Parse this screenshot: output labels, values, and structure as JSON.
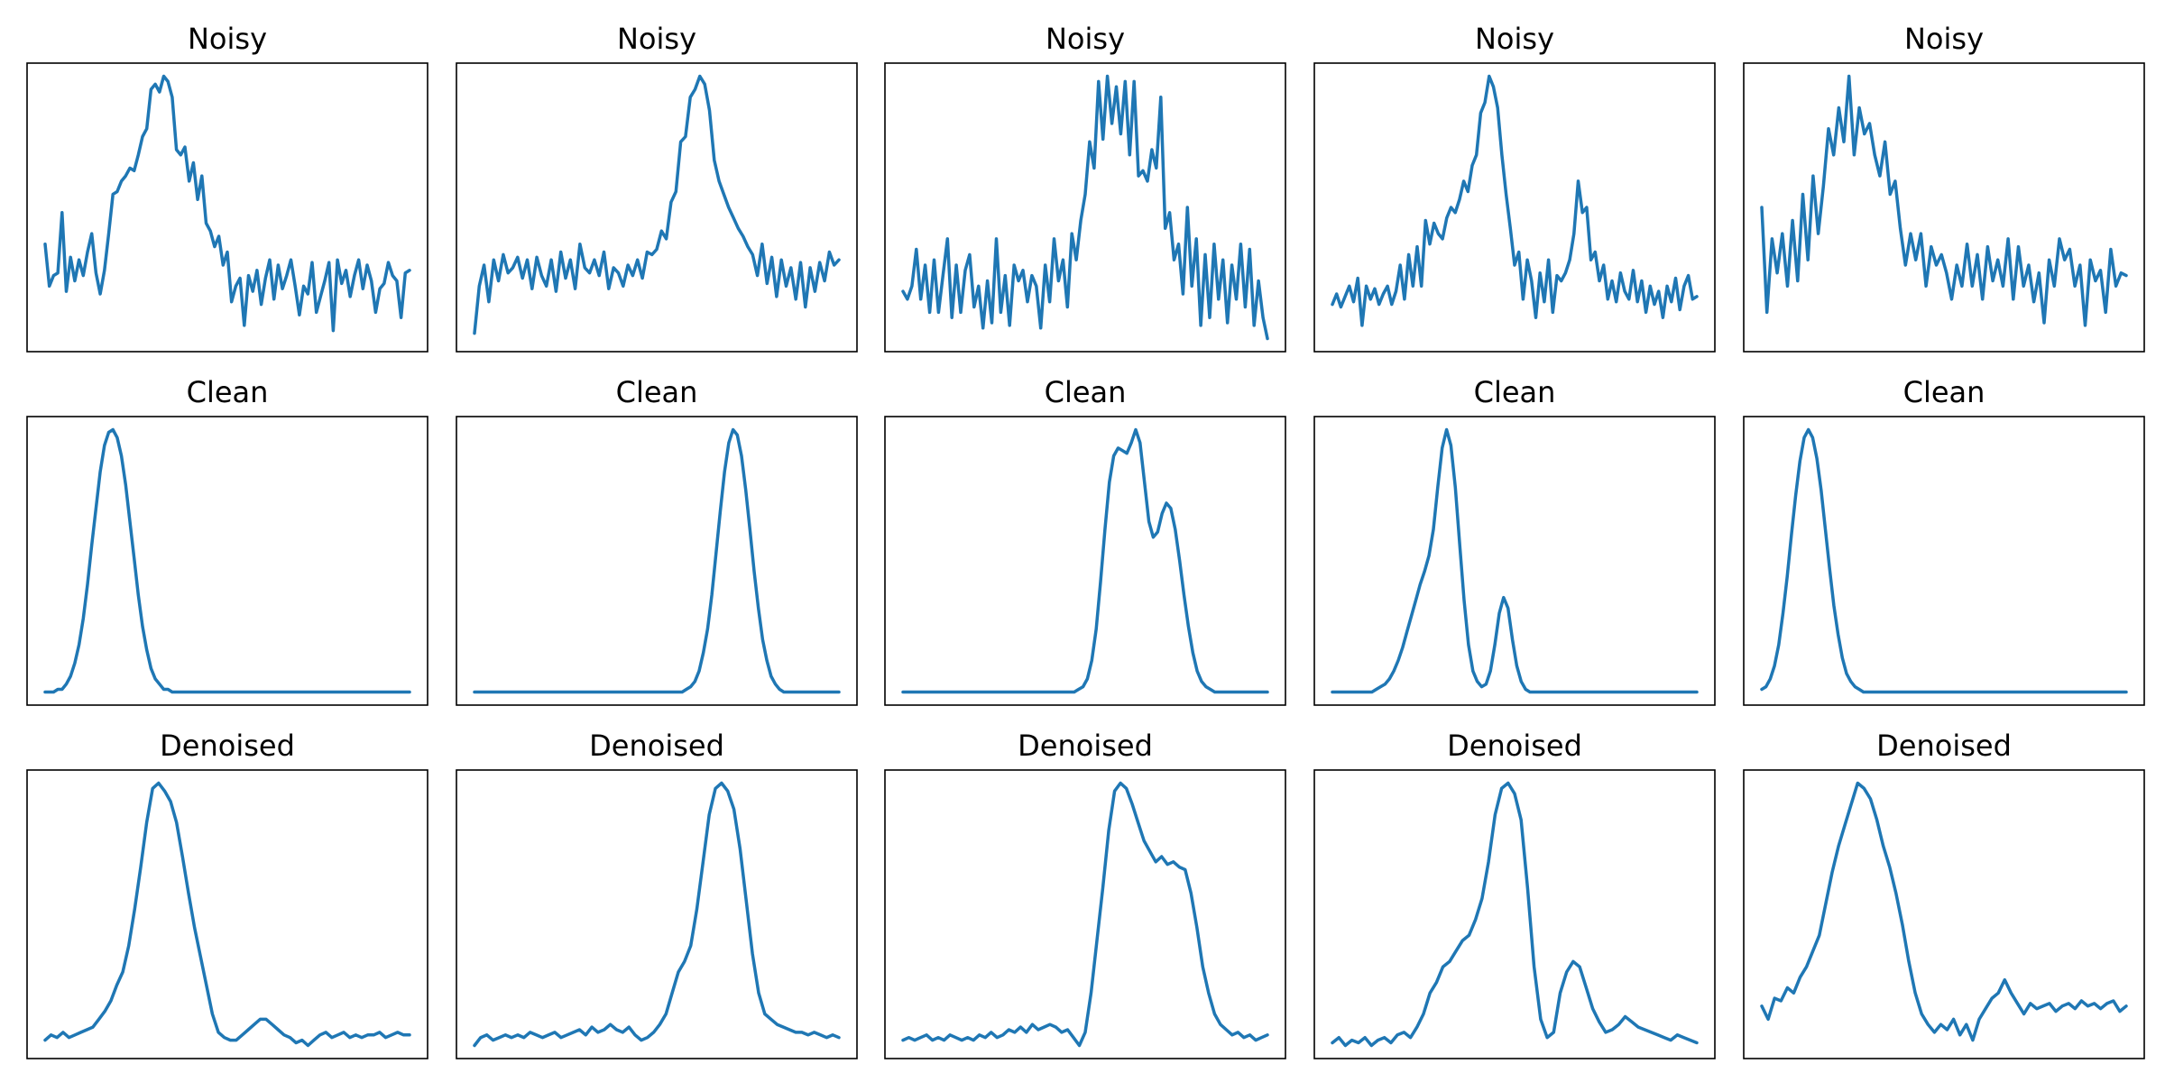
{
  "colors": {
    "line": "#1f77b4",
    "frame": "#000000",
    "background": "#ffffff"
  },
  "chart_data": [
    {
      "type": "line",
      "title": "Noisy",
      "xlabel": "",
      "ylabel": "",
      "grid": false,
      "ticks": false,
      "ylim": [
        -0.05,
        1.05
      ],
      "values": [
        0.36,
        0.2,
        0.24,
        0.25,
        0.48,
        0.18,
        0.31,
        0.22,
        0.3,
        0.24,
        0.33,
        0.4,
        0.25,
        0.17,
        0.26,
        0.4,
        0.55,
        0.56,
        0.6,
        0.62,
        0.65,
        0.64,
        0.7,
        0.77,
        0.8,
        0.95,
        0.97,
        0.94,
        1.0,
        0.98,
        0.92,
        0.72,
        0.7,
        0.73,
        0.6,
        0.67,
        0.53,
        0.62,
        0.44,
        0.41,
        0.35,
        0.39,
        0.28,
        0.33,
        0.14,
        0.2,
        0.23,
        0.05,
        0.24,
        0.18,
        0.26,
        0.13,
        0.23,
        0.3,
        0.15,
        0.28,
        0.19,
        0.24,
        0.3,
        0.2,
        0.09,
        0.2,
        0.17,
        0.29,
        0.1,
        0.16,
        0.22,
        0.29,
        0.03,
        0.3,
        0.21,
        0.26,
        0.16,
        0.24,
        0.3,
        0.19,
        0.28,
        0.22,
        0.1,
        0.19,
        0.21,
        0.29,
        0.24,
        0.22,
        0.08,
        0.25,
        0.26
      ]
    },
    {
      "type": "line",
      "title": "Clean",
      "xlabel": "",
      "ylabel": "",
      "grid": false,
      "ticks": false,
      "ylim": [
        -0.05,
        1.05
      ],
      "values": [
        0,
        0,
        0,
        0.01,
        0.01,
        0.03,
        0.06,
        0.11,
        0.18,
        0.28,
        0.41,
        0.56,
        0.7,
        0.84,
        0.94,
        0.99,
        1.0,
        0.97,
        0.9,
        0.79,
        0.65,
        0.51,
        0.37,
        0.25,
        0.16,
        0.09,
        0.05,
        0.03,
        0.01,
        0.01,
        0,
        0,
        0,
        0,
        0,
        0,
        0,
        0,
        0,
        0,
        0,
        0,
        0,
        0,
        0,
        0,
        0,
        0,
        0,
        0,
        0,
        0,
        0,
        0,
        0,
        0,
        0,
        0,
        0,
        0,
        0,
        0,
        0,
        0,
        0,
        0,
        0,
        0,
        0,
        0,
        0,
        0,
        0,
        0,
        0,
        0,
        0,
        0,
        0,
        0,
        0,
        0,
        0,
        0,
        0,
        0,
        0
      ]
    },
    {
      "type": "line",
      "title": "Denoised",
      "xlabel": "",
      "ylabel": "",
      "grid": false,
      "ticks": false,
      "ylim": [
        -0.05,
        1.05
      ],
      "values": [
        0.02,
        0.04,
        0.03,
        0.05,
        0.03,
        0.04,
        0.05,
        0.06,
        0.07,
        0.1,
        0.13,
        0.17,
        0.23,
        0.28,
        0.38,
        0.52,
        0.68,
        0.85,
        0.98,
        1.0,
        0.97,
        0.93,
        0.85,
        0.72,
        0.58,
        0.45,
        0.34,
        0.23,
        0.12,
        0.05,
        0.03,
        0.02,
        0.02,
        0.04,
        0.06,
        0.08,
        0.1,
        0.1,
        0.08,
        0.06,
        0.04,
        0.03,
        0.01,
        0.02,
        0.0,
        0.02,
        0.04,
        0.05,
        0.03,
        0.04,
        0.05,
        0.03,
        0.04,
        0.03,
        0.04,
        0.04,
        0.05,
        0.03,
        0.04,
        0.05,
        0.04,
        0.04
      ]
    },
    {
      "type": "line",
      "title": "Noisy",
      "xlabel": "",
      "ylabel": "",
      "grid": false,
      "ticks": false,
      "ylim": [
        -0.05,
        1.05
      ],
      "values": [
        0.02,
        0.2,
        0.28,
        0.14,
        0.3,
        0.22,
        0.32,
        0.25,
        0.27,
        0.31,
        0.23,
        0.3,
        0.19,
        0.31,
        0.24,
        0.2,
        0.3,
        0.18,
        0.33,
        0.23,
        0.3,
        0.19,
        0.36,
        0.27,
        0.25,
        0.3,
        0.24,
        0.33,
        0.19,
        0.27,
        0.25,
        0.2,
        0.28,
        0.24,
        0.3,
        0.23,
        0.33,
        0.32,
        0.34,
        0.41,
        0.38,
        0.52,
        0.56,
        0.75,
        0.77,
        0.92,
        0.95,
        1.0,
        0.97,
        0.87,
        0.68,
        0.6,
        0.55,
        0.5,
        0.46,
        0.42,
        0.39,
        0.35,
        0.32,
        0.24,
        0.36,
        0.21,
        0.31,
        0.16,
        0.3,
        0.2,
        0.27,
        0.15,
        0.29,
        0.12,
        0.27,
        0.18,
        0.29,
        0.22,
        0.33,
        0.28,
        0.3
      ]
    },
    {
      "type": "line",
      "title": "Clean",
      "xlabel": "",
      "ylabel": "",
      "grid": false,
      "ticks": false,
      "ylim": [
        -0.05,
        1.05
      ],
      "values": [
        0,
        0,
        0,
        0,
        0,
        0,
        0,
        0,
        0,
        0,
        0,
        0,
        0,
        0,
        0,
        0,
        0,
        0,
        0,
        0,
        0,
        0,
        0,
        0,
        0,
        0,
        0,
        0,
        0,
        0,
        0,
        0,
        0,
        0,
        0,
        0,
        0,
        0,
        0,
        0,
        0,
        0,
        0,
        0,
        0,
        0,
        0,
        0,
        0,
        0,
        0.01,
        0.02,
        0.04,
        0.08,
        0.15,
        0.24,
        0.37,
        0.53,
        0.69,
        0.84,
        0.95,
        1.0,
        0.98,
        0.9,
        0.77,
        0.62,
        0.46,
        0.32,
        0.2,
        0.12,
        0.06,
        0.03,
        0.01,
        0,
        0,
        0,
        0,
        0,
        0,
        0,
        0,
        0,
        0,
        0,
        0,
        0,
        0
      ]
    },
    {
      "type": "line",
      "title": "Denoised",
      "xlabel": "",
      "ylabel": "",
      "grid": false,
      "ticks": false,
      "ylim": [
        -0.05,
        1.05
      ],
      "values": [
        0.0,
        0.03,
        0.04,
        0.02,
        0.03,
        0.04,
        0.03,
        0.04,
        0.03,
        0.05,
        0.04,
        0.03,
        0.04,
        0.05,
        0.03,
        0.04,
        0.05,
        0.06,
        0.04,
        0.07,
        0.05,
        0.06,
        0.08,
        0.06,
        0.05,
        0.07,
        0.04,
        0.02,
        0.03,
        0.05,
        0.08,
        0.12,
        0.2,
        0.28,
        0.32,
        0.38,
        0.52,
        0.7,
        0.88,
        0.98,
        1.0,
        0.97,
        0.9,
        0.75,
        0.55,
        0.35,
        0.2,
        0.12,
        0.1,
        0.08,
        0.07,
        0.06,
        0.05,
        0.05,
        0.04,
        0.05,
        0.04,
        0.03,
        0.04,
        0.03
      ]
    },
    {
      "type": "line",
      "title": "Noisy",
      "xlabel": "",
      "ylabel": "",
      "grid": false,
      "ticks": false,
      "ylim": [
        -0.05,
        1.05
      ],
      "values": [
        0.18,
        0.15,
        0.2,
        0.34,
        0.15,
        0.28,
        0.1,
        0.3,
        0.1,
        0.24,
        0.38,
        0.08,
        0.28,
        0.1,
        0.26,
        0.32,
        0.12,
        0.2,
        0.04,
        0.22,
        0.06,
        0.38,
        0.1,
        0.24,
        0.05,
        0.28,
        0.22,
        0.26,
        0.14,
        0.24,
        0.2,
        0.04,
        0.28,
        0.14,
        0.38,
        0.22,
        0.3,
        0.12,
        0.4,
        0.3,
        0.45,
        0.55,
        0.75,
        0.65,
        0.98,
        0.76,
        1.0,
        0.82,
        0.96,
        0.78,
        0.98,
        0.7,
        0.98,
        0.62,
        0.64,
        0.6,
        0.72,
        0.65,
        0.92,
        0.42,
        0.48,
        0.3,
        0.36,
        0.17,
        0.5,
        0.2,
        0.38,
        0.05,
        0.32,
        0.08,
        0.36,
        0.15,
        0.3,
        0.06,
        0.28,
        0.15,
        0.36,
        0.12,
        0.34,
        0.05,
        0.22,
        0.08,
        0.0
      ]
    },
    {
      "type": "line",
      "title": "Clean",
      "xlabel": "",
      "ylabel": "",
      "grid": false,
      "ticks": false,
      "ylim": [
        -0.05,
        1.05
      ],
      "values": [
        0,
        0,
        0,
        0,
        0,
        0,
        0,
        0,
        0,
        0,
        0,
        0,
        0,
        0,
        0,
        0,
        0,
        0,
        0,
        0,
        0,
        0,
        0,
        0,
        0,
        0,
        0,
        0,
        0,
        0,
        0,
        0,
        0,
        0,
        0,
        0,
        0,
        0,
        0,
        0,
        0.01,
        0.02,
        0.05,
        0.12,
        0.24,
        0.42,
        0.62,
        0.8,
        0.9,
        0.93,
        0.92,
        0.91,
        0.95,
        1.0,
        0.95,
        0.8,
        0.65,
        0.59,
        0.61,
        0.68,
        0.72,
        0.7,
        0.62,
        0.5,
        0.37,
        0.25,
        0.15,
        0.08,
        0.04,
        0.02,
        0.01,
        0,
        0,
        0,
        0,
        0,
        0,
        0,
        0,
        0,
        0,
        0,
        0,
        0
      ]
    },
    {
      "type": "line",
      "title": "Denoised",
      "xlabel": "",
      "ylabel": "",
      "grid": false,
      "ticks": false,
      "ylim": [
        -0.05,
        1.05
      ],
      "values": [
        0.02,
        0.03,
        0.02,
        0.03,
        0.04,
        0.02,
        0.03,
        0.02,
        0.04,
        0.03,
        0.02,
        0.03,
        0.02,
        0.04,
        0.03,
        0.05,
        0.03,
        0.04,
        0.06,
        0.05,
        0.07,
        0.05,
        0.08,
        0.06,
        0.07,
        0.08,
        0.07,
        0.05,
        0.06,
        0.03,
        0.0,
        0.05,
        0.2,
        0.4,
        0.6,
        0.82,
        0.97,
        1.0,
        0.98,
        0.92,
        0.85,
        0.78,
        0.74,
        0.7,
        0.72,
        0.69,
        0.7,
        0.68,
        0.67,
        0.58,
        0.45,
        0.3,
        0.2,
        0.12,
        0.08,
        0.06,
        0.04,
        0.05,
        0.03,
        0.04,
        0.02,
        0.03,
        0.04
      ]
    },
    {
      "type": "line",
      "title": "Noisy",
      "xlabel": "",
      "ylabel": "",
      "grid": false,
      "ticks": false,
      "ylim": [
        -0.05,
        1.05
      ],
      "values": [
        0.13,
        0.17,
        0.12,
        0.16,
        0.2,
        0.14,
        0.23,
        0.05,
        0.2,
        0.15,
        0.19,
        0.13,
        0.17,
        0.2,
        0.13,
        0.18,
        0.28,
        0.15,
        0.32,
        0.2,
        0.35,
        0.2,
        0.45,
        0.36,
        0.44,
        0.4,
        0.38,
        0.46,
        0.5,
        0.48,
        0.53,
        0.6,
        0.56,
        0.66,
        0.7,
        0.86,
        0.9,
        1.0,
        0.96,
        0.88,
        0.7,
        0.55,
        0.42,
        0.28,
        0.33,
        0.15,
        0.3,
        0.22,
        0.08,
        0.25,
        0.14,
        0.3,
        0.1,
        0.24,
        0.22,
        0.25,
        0.3,
        0.4,
        0.6,
        0.48,
        0.5,
        0.3,
        0.33,
        0.22,
        0.28,
        0.15,
        0.22,
        0.14,
        0.25,
        0.18,
        0.15,
        0.26,
        0.14,
        0.22,
        0.1,
        0.2,
        0.13,
        0.18,
        0.08,
        0.2,
        0.14,
        0.23,
        0.11,
        0.2,
        0.24,
        0.15,
        0.16
      ]
    },
    {
      "type": "line",
      "title": "Clean",
      "xlabel": "",
      "ylabel": "",
      "grid": false,
      "ticks": false,
      "ylim": [
        -0.05,
        1.05
      ],
      "values": [
        0,
        0,
        0,
        0,
        0,
        0,
        0,
        0,
        0,
        0,
        0.01,
        0.02,
        0.03,
        0.05,
        0.08,
        0.12,
        0.17,
        0.23,
        0.29,
        0.35,
        0.41,
        0.46,
        0.52,
        0.62,
        0.78,
        0.93,
        1.0,
        0.94,
        0.78,
        0.56,
        0.35,
        0.18,
        0.08,
        0.04,
        0.02,
        0.03,
        0.08,
        0.18,
        0.3,
        0.36,
        0.32,
        0.2,
        0.1,
        0.04,
        0.01,
        0,
        0,
        0,
        0,
        0,
        0,
        0,
        0,
        0,
        0,
        0,
        0,
        0,
        0,
        0,
        0,
        0,
        0,
        0,
        0,
        0,
        0,
        0,
        0,
        0,
        0,
        0,
        0,
        0,
        0,
        0,
        0,
        0,
        0,
        0,
        0,
        0,
        0,
        0
      ]
    },
    {
      "type": "line",
      "title": "Denoised",
      "xlabel": "",
      "ylabel": "",
      "grid": false,
      "ticks": false,
      "ylim": [
        -0.05,
        1.05
      ],
      "values": [
        0.01,
        0.03,
        0.0,
        0.02,
        0.01,
        0.03,
        0.0,
        0.02,
        0.03,
        0.01,
        0.04,
        0.05,
        0.03,
        0.07,
        0.12,
        0.2,
        0.24,
        0.3,
        0.32,
        0.36,
        0.4,
        0.42,
        0.48,
        0.56,
        0.7,
        0.88,
        0.98,
        1.0,
        0.96,
        0.86,
        0.6,
        0.3,
        0.1,
        0.03,
        0.05,
        0.2,
        0.28,
        0.32,
        0.3,
        0.22,
        0.14,
        0.09,
        0.05,
        0.06,
        0.08,
        0.11,
        0.09,
        0.07,
        0.06,
        0.05,
        0.04,
        0.03,
        0.02,
        0.04,
        0.03,
        0.02,
        0.01
      ]
    },
    {
      "type": "line",
      "title": "Noisy",
      "xlabel": "",
      "ylabel": "",
      "grid": false,
      "ticks": false,
      "ylim": [
        -0.05,
        1.05
      ],
      "values": [
        0.5,
        0.1,
        0.38,
        0.25,
        0.4,
        0.2,
        0.45,
        0.22,
        0.55,
        0.3,
        0.62,
        0.4,
        0.58,
        0.8,
        0.7,
        0.88,
        0.75,
        1.0,
        0.7,
        0.88,
        0.78,
        0.82,
        0.7,
        0.62,
        0.75,
        0.55,
        0.6,
        0.42,
        0.28,
        0.4,
        0.3,
        0.4,
        0.2,
        0.35,
        0.28,
        0.32,
        0.25,
        0.15,
        0.28,
        0.2,
        0.36,
        0.2,
        0.32,
        0.15,
        0.35,
        0.22,
        0.3,
        0.2,
        0.38,
        0.15,
        0.35,
        0.2,
        0.28,
        0.14,
        0.25,
        0.06,
        0.3,
        0.2,
        0.38,
        0.3,
        0.34,
        0.2,
        0.28,
        0.05,
        0.3,
        0.22,
        0.26,
        0.1,
        0.34,
        0.2,
        0.25,
        0.24
      ]
    },
    {
      "type": "line",
      "title": "Clean",
      "xlabel": "",
      "ylabel": "",
      "grid": false,
      "ticks": false,
      "ylim": [
        -0.05,
        1.05
      ],
      "values": [
        0.01,
        0.02,
        0.05,
        0.1,
        0.18,
        0.3,
        0.44,
        0.6,
        0.75,
        0.88,
        0.97,
        1.0,
        0.97,
        0.89,
        0.77,
        0.62,
        0.47,
        0.33,
        0.22,
        0.13,
        0.07,
        0.04,
        0.02,
        0.01,
        0,
        0,
        0,
        0,
        0,
        0,
        0,
        0,
        0,
        0,
        0,
        0,
        0,
        0,
        0,
        0,
        0,
        0,
        0,
        0,
        0,
        0,
        0,
        0,
        0,
        0,
        0,
        0,
        0,
        0,
        0,
        0,
        0,
        0,
        0,
        0,
        0,
        0,
        0,
        0,
        0,
        0,
        0,
        0,
        0,
        0,
        0,
        0,
        0,
        0,
        0,
        0,
        0,
        0,
        0,
        0,
        0,
        0,
        0,
        0,
        0,
        0,
        0
      ]
    },
    {
      "type": "line",
      "title": "Denoised",
      "xlabel": "",
      "ylabel": "",
      "grid": false,
      "ticks": false,
      "ylim": [
        -0.05,
        1.05
      ],
      "values": [
        0.15,
        0.1,
        0.18,
        0.17,
        0.22,
        0.2,
        0.26,
        0.3,
        0.36,
        0.42,
        0.54,
        0.66,
        0.76,
        0.84,
        0.92,
        1.0,
        0.98,
        0.94,
        0.86,
        0.76,
        0.68,
        0.58,
        0.46,
        0.32,
        0.2,
        0.12,
        0.08,
        0.05,
        0.08,
        0.06,
        0.1,
        0.04,
        0.08,
        0.02,
        0.1,
        0.14,
        0.18,
        0.2,
        0.25,
        0.2,
        0.16,
        0.12,
        0.16,
        0.14,
        0.15,
        0.16,
        0.13,
        0.15,
        0.16,
        0.14,
        0.17,
        0.15,
        0.16,
        0.14,
        0.16,
        0.17,
        0.13,
        0.15
      ]
    }
  ]
}
